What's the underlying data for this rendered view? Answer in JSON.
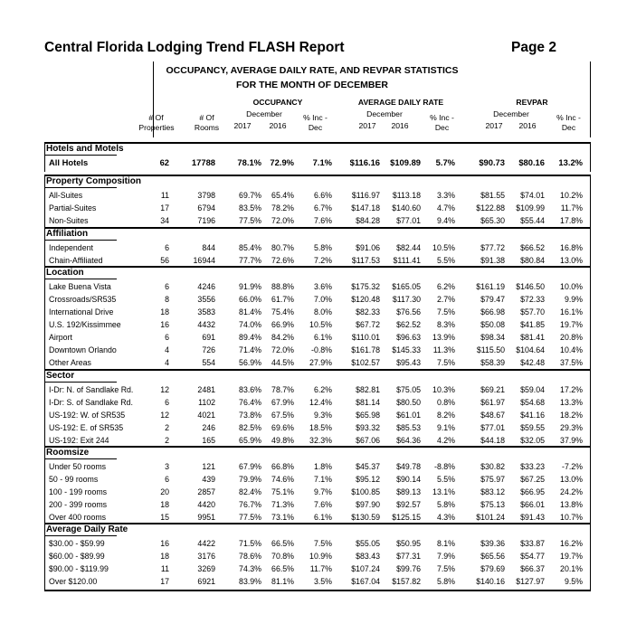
{
  "report": {
    "title": "Central Florida Lodging Trend FLASH Report",
    "page": "Page 2",
    "subtitle1": "OCCUPANCY, AVERAGE DAILY RATE, AND REVPAR STATISTICS",
    "subtitle2": "FOR THE MONTH OF DECEMBER"
  },
  "headers": {
    "occupancy": "OCCUPANCY",
    "adr": "AVERAGE DAILY RATE",
    "revpar": "REVPAR",
    "december": "December",
    "y2017": "2017",
    "y2016": "2016",
    "pct_inc_1": "% Inc -",
    "pct_inc_2": "Dec",
    "props_1": "# Of",
    "props_2": "Properties",
    "rooms_1": "# Of",
    "rooms_2": "Rooms"
  },
  "sections": [
    {
      "title": "Hotels and Motels",
      "bold": true,
      "rows": [
        [
          "All Hotels",
          "62",
          "17788",
          "78.1%",
          "72.9%",
          "7.1%",
          "$116.16",
          "$109.89",
          "5.7%",
          "$90.73",
          "$80.16",
          "13.2%"
        ]
      ]
    },
    {
      "title": "Property Composition",
      "rows": [
        [
          "All-Suites",
          "11",
          "3798",
          "69.7%",
          "65.4%",
          "6.6%",
          "$116.97",
          "$113.18",
          "3.3%",
          "$81.55",
          "$74.01",
          "10.2%"
        ],
        [
          "Partial-Suites",
          "17",
          "6794",
          "83.5%",
          "78.2%",
          "6.7%",
          "$147.18",
          "$140.60",
          "4.7%",
          "$122.88",
          "$109.99",
          "11.7%"
        ],
        [
          "Non-Suites",
          "34",
          "7196",
          "77.5%",
          "72.0%",
          "7.6%",
          "$84.28",
          "$77.01",
          "9.4%",
          "$65.30",
          "$55.44",
          "17.8%"
        ]
      ]
    },
    {
      "title": "Affiliation",
      "rows": [
        [
          "Independent",
          "6",
          "844",
          "85.4%",
          "80.7%",
          "5.8%",
          "$91.06",
          "$82.44",
          "10.5%",
          "$77.72",
          "$66.52",
          "16.8%"
        ],
        [
          "Chain-Affiliated",
          "56",
          "16944",
          "77.7%",
          "72.6%",
          "7.2%",
          "$117.53",
          "$111.41",
          "5.5%",
          "$91.38",
          "$80.84",
          "13.0%"
        ]
      ]
    },
    {
      "title": "Location",
      "rows": [
        [
          "Lake Buena Vista",
          "6",
          "4246",
          "91.9%",
          "88.8%",
          "3.6%",
          "$175.32",
          "$165.05",
          "6.2%",
          "$161.19",
          "$146.50",
          "10.0%"
        ],
        [
          "Crossroads/SR535",
          "8",
          "3556",
          "66.0%",
          "61.7%",
          "7.0%",
          "$120.48",
          "$117.30",
          "2.7%",
          "$79.47",
          "$72.33",
          "9.9%"
        ],
        [
          "International Drive",
          "18",
          "3583",
          "81.4%",
          "75.4%",
          "8.0%",
          "$82.33",
          "$76.56",
          "7.5%",
          "$66.98",
          "$57.70",
          "16.1%"
        ],
        [
          "U.S. 192/Kissimmee",
          "16",
          "4432",
          "74.0%",
          "66.9%",
          "10.5%",
          "$67.72",
          "$62.52",
          "8.3%",
          "$50.08",
          "$41.85",
          "19.7%"
        ],
        [
          "Airport",
          "6",
          "691",
          "89.4%",
          "84.2%",
          "6.1%",
          "$110.01",
          "$96.63",
          "13.9%",
          "$98.34",
          "$81.41",
          "20.8%"
        ],
        [
          "Downtown Orlando",
          "4",
          "726",
          "71.4%",
          "72.0%",
          "-0.8%",
          "$161.78",
          "$145.33",
          "11.3%",
          "$115.50",
          "$104.64",
          "10.4%"
        ],
        [
          "Other Areas",
          "4",
          "554",
          "56.9%",
          "44.5%",
          "27.9%",
          "$102.57",
          "$95.43",
          "7.5%",
          "$58.39",
          "$42.48",
          "37.5%"
        ]
      ]
    },
    {
      "title": "Sector",
      "rows": [
        [
          "I-Dr: N. of Sandlake Rd.",
          "12",
          "2481",
          "83.6%",
          "78.7%",
          "6.2%",
          "$82.81",
          "$75.05",
          "10.3%",
          "$69.21",
          "$59.04",
          "17.2%"
        ],
        [
          "I-Dr: S. of Sandlake Rd.",
          "6",
          "1102",
          "76.4%",
          "67.9%",
          "12.4%",
          "$81.14",
          "$80.50",
          "0.8%",
          "$61.97",
          "$54.68",
          "13.3%"
        ],
        [
          "US-192: W. of SR535",
          "12",
          "4021",
          "73.8%",
          "67.5%",
          "9.3%",
          "$65.98",
          "$61.01",
          "8.2%",
          "$48.67",
          "$41.16",
          "18.2%"
        ],
        [
          "US-192: E. of SR535",
          "2",
          "246",
          "82.5%",
          "69.6%",
          "18.5%",
          "$93.32",
          "$85.53",
          "9.1%",
          "$77.01",
          "$59.55",
          "29.3%"
        ],
        [
          "US-192: Exit 244",
          "2",
          "165",
          "65.9%",
          "49.8%",
          "32.3%",
          "$67.06",
          "$64.36",
          "4.2%",
          "$44.18",
          "$32.05",
          "37.9%"
        ]
      ]
    },
    {
      "title": "Roomsize",
      "rows": [
        [
          "Under 50 rooms",
          "3",
          "121",
          "67.9%",
          "66.8%",
          "1.8%",
          "$45.37",
          "$49.78",
          "-8.8%",
          "$30.82",
          "$33.23",
          "-7.2%"
        ],
        [
          "50 - 99 rooms",
          "6",
          "439",
          "79.9%",
          "74.6%",
          "7.1%",
          "$95.12",
          "$90.14",
          "5.5%",
          "$75.97",
          "$67.25",
          "13.0%"
        ],
        [
          "100 - 199 rooms",
          "20",
          "2857",
          "82.4%",
          "75.1%",
          "9.7%",
          "$100.85",
          "$89.13",
          "13.1%",
          "$83.12",
          "$66.95",
          "24.2%"
        ],
        [
          "200 - 399 rooms",
          "18",
          "4420",
          "76.7%",
          "71.3%",
          "7.6%",
          "$97.90",
          "$92.57",
          "5.8%",
          "$75.13",
          "$66.01",
          "13.8%"
        ],
        [
          "Over 400 rooms",
          "15",
          "9951",
          "77.5%",
          "73.1%",
          "6.1%",
          "$130.59",
          "$125.15",
          "4.3%",
          "$101.24",
          "$91.43",
          "10.7%"
        ]
      ]
    },
    {
      "title": "Average Daily Rate",
      "rows": [
        [
          "$30.00 - $59.99",
          "16",
          "4422",
          "71.5%",
          "66.5%",
          "7.5%",
          "$55.05",
          "$50.95",
          "8.1%",
          "$39.36",
          "$33.87",
          "16.2%"
        ],
        [
          "$60.00 - $89.99",
          "18",
          "3176",
          "78.6%",
          "70.8%",
          "10.9%",
          "$83.43",
          "$77.31",
          "7.9%",
          "$65.56",
          "$54.77",
          "19.7%"
        ],
        [
          "$90.00 - $119.99",
          "11",
          "3269",
          "74.3%",
          "66.5%",
          "11.7%",
          "$107.24",
          "$99.76",
          "7.5%",
          "$79.69",
          "$66.37",
          "20.1%"
        ],
        [
          "Over $120.00",
          "17",
          "6921",
          "83.9%",
          "81.1%",
          "3.5%",
          "$167.04",
          "$157.82",
          "5.8%",
          "$140.16",
          "$127.97",
          "9.5%"
        ]
      ]
    }
  ]
}
